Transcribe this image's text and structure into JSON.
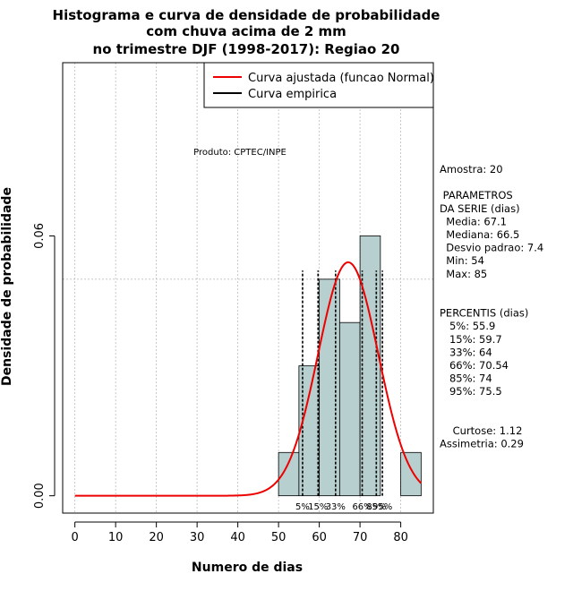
{
  "chart_data": {
    "type": "bar",
    "title_lines": [
      "Histograma e curva de densidade de probabilidade",
      "com chuva acima de 2 mm",
      "no trimestre DJF (1998-2017): Regiao 20"
    ],
    "xlabel": "Numero de dias",
    "ylabel": "Densidade de probabilidade",
    "xlim": [
      -3,
      88
    ],
    "ylim": [
      -0.004,
      0.1
    ],
    "x_ticks": [
      0,
      10,
      20,
      30,
      40,
      50,
      60,
      70,
      80
    ],
    "x_tick_labels": [
      "0",
      "10",
      "20",
      "30",
      "40",
      "50",
      "60",
      "70",
      "80"
    ],
    "y_ticks": [
      0.0,
      0.06
    ],
    "y_tick_labels": [
      "0.00",
      "0.06"
    ],
    "grid_x": [
      0,
      10,
      20,
      30,
      40,
      50,
      60,
      70,
      80
    ],
    "grid_y": [
      0.05,
      0.1
    ],
    "histogram": {
      "bins": [
        [
          50,
          55
        ],
        [
          55,
          60
        ],
        [
          60,
          65
        ],
        [
          65,
          70
        ],
        [
          70,
          75
        ],
        [
          75,
          80
        ],
        [
          80,
          85
        ]
      ],
      "density": [
        0.01,
        0.03,
        0.05,
        0.04,
        0.06,
        0.0,
        0.01
      ],
      "fill_color": "#b8cfcf"
    },
    "normal_curve": {
      "mean": 67.1,
      "sd": 7.4,
      "x_from": 0,
      "x_to": 85,
      "color": "#ee0000"
    },
    "percentiles": [
      {
        "label": "5%",
        "value": 55.9
      },
      {
        "label": "15%",
        "value": 59.7
      },
      {
        "label": "33%",
        "value": 64
      },
      {
        "label": "66%",
        "value": 70.54
      },
      {
        "label": "85%",
        "value": 74
      },
      {
        "label": "95%",
        "value": 75.5
      }
    ],
    "legend": {
      "placement": "top-right",
      "entries": [
        {
          "label": "Curva ajustada (funcao Normal)",
          "color": "#ee0000"
        },
        {
          "label": "Curva empirica",
          "color": "#000000"
        }
      ]
    },
    "annotation": "Produto: CPTEC/INPE",
    "stats_lines": [
      "Amostra: 20",
      "",
      " PARAMETROS",
      "DA SERIE (dias)",
      "  Media: 67.1",
      "  Mediana: 66.5",
      "  Desvio padrao: 7.4",
      "  Min: 54",
      "  Max: 85",
      "",
      "",
      "PERCENTIS (dias)",
      "   5%: 55.9",
      "   15%: 59.7",
      "   33%: 64",
      "   66%: 70.54",
      "   85%: 74",
      "   95%: 75.5",
      "",
      "",
      "    Curtose: 1.12",
      "Assimetria: 0.29"
    ]
  }
}
